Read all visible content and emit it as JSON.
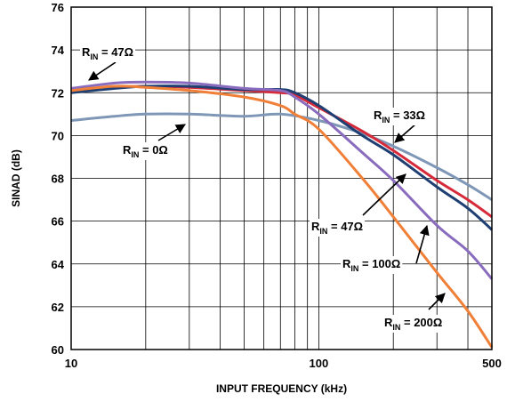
{
  "chart_data": {
    "type": "line",
    "title": "",
    "xlabel": "INPUT FREQUENCY (kHz)",
    "ylabel": "SINAD (dB)",
    "xscale": "log",
    "xlim": [
      10,
      500
    ],
    "ylim": [
      60,
      76
    ],
    "grid": true,
    "x_ticks": [
      10,
      100,
      500
    ],
    "x_tick_labels": [
      "10",
      "100",
      "500"
    ],
    "y_ticks": [
      60,
      62,
      64,
      66,
      68,
      70,
      72,
      74,
      76
    ],
    "y_tick_labels": [
      "60",
      "62",
      "64",
      "66",
      "68",
      "70",
      "72",
      "74",
      "76"
    ],
    "series": [
      {
        "color": "#7f97b7",
        "points": [
          [
            10,
            70.7
          ],
          [
            15,
            70.9
          ],
          [
            20,
            71.0
          ],
          [
            30,
            71.0
          ],
          [
            50,
            70.9
          ],
          [
            70,
            71.0
          ],
          [
            100,
            70.7
          ],
          [
            150,
            70.1
          ],
          [
            200,
            69.5
          ],
          [
            300,
            68.5
          ],
          [
            400,
            67.7
          ],
          [
            500,
            67.0
          ]
        ]
      },
      {
        "color": "#d62a3a",
        "points": [
          [
            10,
            72.1
          ],
          [
            15,
            72.25
          ],
          [
            20,
            72.3
          ],
          [
            30,
            72.25
          ],
          [
            50,
            72.1
          ],
          [
            70,
            72.0
          ],
          [
            80,
            71.9
          ],
          [
            100,
            71.3
          ],
          [
            150,
            70.2
          ],
          [
            200,
            69.3
          ],
          [
            300,
            67.9
          ],
          [
            400,
            67.0
          ],
          [
            500,
            66.2
          ]
        ]
      },
      {
        "color": "#1f3f73",
        "points": [
          [
            10,
            72.0
          ],
          [
            15,
            72.2
          ],
          [
            20,
            72.3
          ],
          [
            30,
            72.3
          ],
          [
            50,
            72.15
          ],
          [
            70,
            72.15
          ],
          [
            80,
            72.0
          ],
          [
            100,
            71.4
          ],
          [
            150,
            70.0
          ],
          [
            200,
            69.1
          ],
          [
            300,
            67.6
          ],
          [
            400,
            66.6
          ],
          [
            500,
            65.6
          ]
        ]
      },
      {
        "color": "#8a6cbe",
        "points": [
          [
            10,
            72.2
          ],
          [
            15,
            72.45
          ],
          [
            20,
            72.5
          ],
          [
            30,
            72.45
          ],
          [
            50,
            72.2
          ],
          [
            70,
            72.1
          ],
          [
            80,
            71.8
          ],
          [
            100,
            71.0
          ],
          [
            150,
            69.2
          ],
          [
            200,
            67.9
          ],
          [
            300,
            65.8
          ],
          [
            400,
            64.6
          ],
          [
            500,
            63.3
          ]
        ]
      },
      {
        "color": "#f07f38",
        "points": [
          [
            10,
            72.1
          ],
          [
            15,
            72.3
          ],
          [
            20,
            72.25
          ],
          [
            30,
            72.1
          ],
          [
            50,
            71.8
          ],
          [
            70,
            71.4
          ],
          [
            80,
            71.0
          ],
          [
            100,
            70.3
          ],
          [
            150,
            68.0
          ],
          [
            200,
            66.2
          ],
          [
            300,
            63.6
          ],
          [
            400,
            61.8
          ],
          [
            500,
            60.1
          ]
        ]
      }
    ],
    "annotations": [
      {
        "main": "R",
        "sub": "IN",
        "rest": " = 47Ω"
      },
      {
        "main": "R",
        "sub": "IN",
        "rest": " = 0Ω"
      },
      {
        "main": "R",
        "sub": "IN",
        "rest": " = 33Ω"
      },
      {
        "main": "R",
        "sub": "IN",
        "rest": " = 47Ω"
      },
      {
        "main": "R",
        "sub": "IN",
        "rest": " = 100Ω"
      },
      {
        "main": "R",
        "sub": "IN",
        "rest": " = 200Ω"
      }
    ]
  }
}
